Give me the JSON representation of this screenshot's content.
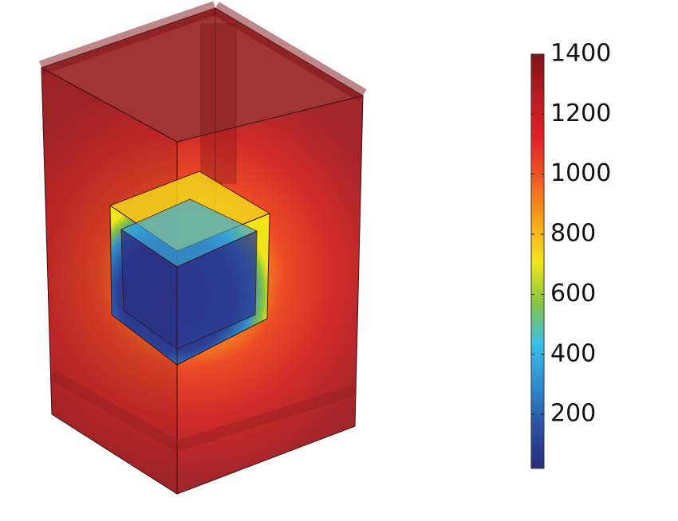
{
  "chart_data": {
    "type": "colorbar",
    "clim": [
      20,
      1400
    ],
    "cticks": [
      200,
      400,
      600,
      800,
      1000,
      1200,
      1400
    ],
    "colormap": [
      "#272c7c",
      "#2b4fa2",
      "#2f8ccf",
      "#39c0e8",
      "#86c540",
      "#f3e51c",
      "#f7a11a",
      "#ee5a22",
      "#e11f26",
      "#b71c22",
      "#7f1417"
    ]
  }
}
